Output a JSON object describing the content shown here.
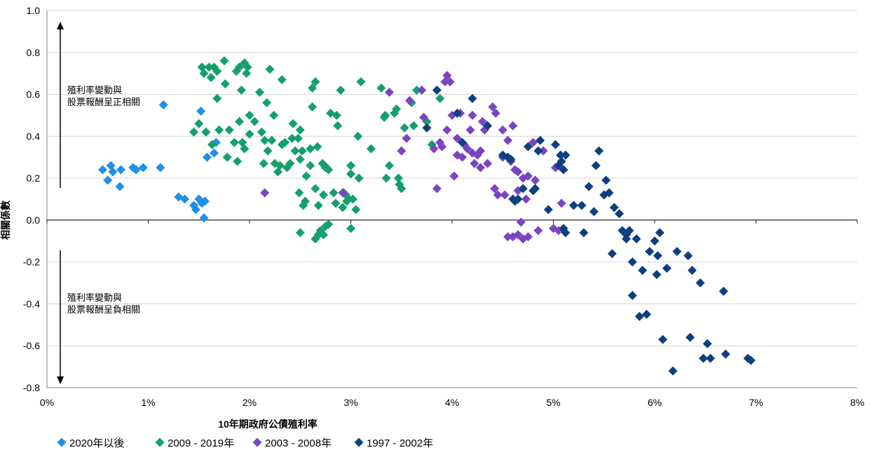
{
  "chart_data": {
    "type": "scatter",
    "xlabel": "10年期政府公債殖利率",
    "ylabel": "相關係數",
    "xlim": [
      0,
      8
    ],
    "ylim": [
      -0.8,
      1.0
    ],
    "x_ticks": [
      "0%",
      "1%",
      "2%",
      "3%",
      "4%",
      "5%",
      "6%",
      "7%",
      "8%"
    ],
    "y_ticks": [
      "1.0",
      "0.8",
      "0.6",
      "0.4",
      "0.2",
      "0.0",
      "-0.2",
      "-0.4",
      "-0.6",
      "-0.8"
    ],
    "grid": "horizontal",
    "legend_position": "bottom-left",
    "annotations": {
      "positive": [
        "殖利率變動與",
        "股票報酬呈正相關"
      ],
      "negative": [
        "殖利率變動與",
        "股票報酬呈負相關"
      ]
    },
    "series": [
      {
        "name": "2020年以後",
        "color": "#1E90E8",
        "points": [
          [
            0.55,
            0.24
          ],
          [
            0.6,
            0.19
          ],
          [
            0.63,
            0.26
          ],
          [
            0.65,
            0.23
          ],
          [
            0.72,
            0.16
          ],
          [
            0.73,
            0.24
          ],
          [
            0.85,
            0.25
          ],
          [
            0.88,
            0.24
          ],
          [
            0.95,
            0.25
          ],
          [
            1.12,
            0.25
          ],
          [
            1.15,
            0.55
          ],
          [
            1.3,
            0.11
          ],
          [
            1.36,
            0.1
          ],
          [
            1.45,
            0.07
          ],
          [
            1.47,
            0.05
          ],
          [
            1.5,
            0.1
          ],
          [
            1.52,
            0.52
          ],
          [
            1.53,
            0.08
          ],
          [
            1.56,
            0.09
          ],
          [
            1.55,
            0.01
          ],
          [
            1.58,
            0.3
          ],
          [
            1.65,
            0.32
          ],
          [
            1.67,
            0.37
          ]
        ]
      },
      {
        "name": "2009 - 2019年",
        "color": "#13A06B",
        "points": [
          [
            1.45,
            0.42
          ],
          [
            1.5,
            0.46
          ],
          [
            1.53,
            0.73
          ],
          [
            1.55,
            0.7
          ],
          [
            1.57,
            0.42
          ],
          [
            1.6,
            0.73
          ],
          [
            1.62,
            0.68
          ],
          [
            1.63,
            0.36
          ],
          [
            1.65,
            0.73
          ],
          [
            1.68,
            0.71
          ],
          [
            1.68,
            0.58
          ],
          [
            1.7,
            0.43
          ],
          [
            1.75,
            0.76
          ],
          [
            1.76,
            0.65
          ],
          [
            1.78,
            0.3
          ],
          [
            1.8,
            0.43
          ],
          [
            1.85,
            0.37
          ],
          [
            1.87,
            0.71
          ],
          [
            1.88,
            0.28
          ],
          [
            1.9,
            0.47
          ],
          [
            1.9,
            0.73
          ],
          [
            1.92,
            0.62
          ],
          [
            1.93,
            0.37
          ],
          [
            1.95,
            0.75
          ],
          [
            1.95,
            0.34
          ],
          [
            1.97,
            0.7
          ],
          [
            1.98,
            0.73
          ],
          [
            2.0,
            0.5
          ],
          [
            2.0,
            0.41
          ],
          [
            2.05,
            0.47
          ],
          [
            2.1,
            0.61
          ],
          [
            2.12,
            0.42
          ],
          [
            2.14,
            0.27
          ],
          [
            2.15,
            0.38
          ],
          [
            2.17,
            0.56
          ],
          [
            2.18,
            0.33
          ],
          [
            2.2,
            0.72
          ],
          [
            2.22,
            0.38
          ],
          [
            2.24,
            0.5
          ],
          [
            2.25,
            0.27
          ],
          [
            2.28,
            0.23
          ],
          [
            2.3,
            0.26
          ],
          [
            2.32,
            0.67
          ],
          [
            2.32,
            0.36
          ],
          [
            2.35,
            0.37
          ],
          [
            2.37,
            0.25
          ],
          [
            2.4,
            0.27
          ],
          [
            2.42,
            0.39
          ],
          [
            2.43,
            0.46
          ],
          [
            2.45,
            0.33
          ],
          [
            2.48,
            0.39
          ],
          [
            2.49,
            0.13
          ],
          [
            2.5,
            0.43
          ],
          [
            2.5,
            0.29
          ],
          [
            2.52,
            0.33
          ],
          [
            2.53,
            0.07
          ],
          [
            2.55,
            0.09
          ],
          [
            2.56,
            0.21
          ],
          [
            2.6,
            0.34
          ],
          [
            2.6,
            0.26
          ],
          [
            2.62,
            0.63
          ],
          [
            2.62,
            0.54
          ],
          [
            2.65,
            0.15
          ],
          [
            2.65,
            0.66
          ],
          [
            2.67,
            0.35
          ],
          [
            2.68,
            0.07
          ],
          [
            2.72,
            0.27
          ],
          [
            2.73,
            0.12
          ],
          [
            2.74,
            0.26
          ],
          [
            2.75,
            0.25
          ],
          [
            2.78,
            0.24
          ],
          [
            2.78,
            -0.02
          ],
          [
            2.8,
            0.51
          ],
          [
            2.83,
            0.13
          ],
          [
            2.85,
            0.08
          ],
          [
            2.86,
            0.5
          ],
          [
            2.87,
            0.45
          ],
          [
            2.9,
            0.62
          ],
          [
            2.92,
            0.06
          ],
          [
            2.93,
            0.13
          ],
          [
            2.95,
            0.12
          ],
          [
            2.96,
            0.09
          ],
          [
            2.98,
            0.1
          ],
          [
            3.0,
            0.26
          ],
          [
            3.0,
            0.22
          ],
          [
            3.02,
            0.1
          ],
          [
            3.05,
            0.05
          ],
          [
            3.07,
            0.4
          ],
          [
            3.08,
            0.2
          ],
          [
            3.1,
            0.66
          ],
          [
            3.2,
            0.34
          ],
          [
            3.3,
            0.63
          ],
          [
            3.33,
            0.49
          ],
          [
            3.34,
            0.5
          ],
          [
            3.35,
            0.2
          ],
          [
            3.38,
            0.26
          ],
          [
            3.43,
            0.51
          ],
          [
            3.45,
            0.53
          ],
          [
            3.47,
            0.2
          ],
          [
            3.48,
            0.17
          ],
          [
            3.5,
            0.15
          ],
          [
            3.53,
            0.44
          ],
          [
            3.6,
            0.56
          ],
          [
            3.62,
            0.45
          ],
          [
            3.65,
            0.62
          ],
          [
            3.75,
            0.47
          ],
          [
            3.8,
            0.36
          ],
          [
            3.88,
            0.58
          ],
          [
            2.5,
            -0.06
          ],
          [
            2.65,
            -0.09
          ],
          [
            2.68,
            -0.07
          ],
          [
            2.7,
            -0.05
          ],
          [
            2.73,
            -0.07
          ],
          [
            2.75,
            -0.03
          ],
          [
            3.0,
            -0.04
          ]
        ]
      },
      {
        "name": "2003 - 2008年",
        "color": "#7B44C0",
        "points": [
          [
            2.15,
            0.13
          ],
          [
            2.92,
            0.13
          ],
          [
            3.38,
            0.61
          ],
          [
            3.5,
            0.33
          ],
          [
            3.55,
            0.39
          ],
          [
            3.58,
            0.57
          ],
          [
            3.7,
            0.62
          ],
          [
            3.72,
            0.49
          ],
          [
            3.82,
            0.34
          ],
          [
            3.85,
            0.15
          ],
          [
            3.88,
            0.37
          ],
          [
            3.9,
            0.35
          ],
          [
            3.93,
            0.66
          ],
          [
            3.95,
            0.43
          ],
          [
            3.95,
            0.69
          ],
          [
            3.98,
            0.66
          ],
          [
            4.0,
            0.5
          ],
          [
            4.02,
            0.21
          ],
          [
            4.05,
            0.39
          ],
          [
            4.05,
            0.31
          ],
          [
            4.08,
            0.51
          ],
          [
            4.1,
            0.3
          ],
          [
            4.12,
            0.36
          ],
          [
            4.15,
            0.34
          ],
          [
            4.18,
            0.43
          ],
          [
            4.2,
            0.5
          ],
          [
            4.2,
            0.32
          ],
          [
            4.22,
            0.27
          ],
          [
            4.25,
            0.31
          ],
          [
            4.28,
            0.33
          ],
          [
            4.28,
            0.25
          ],
          [
            4.3,
            0.47
          ],
          [
            4.32,
            0.43
          ],
          [
            4.35,
            0.27
          ],
          [
            4.4,
            0.54
          ],
          [
            4.42,
            0.15
          ],
          [
            4.43,
            0.51
          ],
          [
            4.45,
            0.12
          ],
          [
            4.5,
            0.43
          ],
          [
            4.5,
            0.3
          ],
          [
            4.52,
            0.12
          ],
          [
            4.55,
            0.38
          ],
          [
            4.55,
            0.3
          ],
          [
            4.58,
            0.28
          ],
          [
            4.6,
            0.45
          ],
          [
            4.62,
            0.24
          ],
          [
            4.65,
            0.14
          ],
          [
            4.65,
            0.23
          ],
          [
            4.7,
            0.2
          ],
          [
            4.73,
            0.1
          ],
          [
            4.75,
            0.21
          ],
          [
            4.8,
            0.37
          ],
          [
            4.82,
            0.19
          ],
          [
            4.9,
            0.33
          ],
          [
            5.02,
            0.25
          ],
          [
            5.08,
            0.08
          ],
          [
            4.55,
            -0.08
          ],
          [
            4.6,
            -0.08
          ],
          [
            4.65,
            -0.07
          ],
          [
            4.68,
            -0.01
          ],
          [
            4.7,
            -0.09
          ],
          [
            4.75,
            -0.08
          ],
          [
            4.85,
            -0.05
          ],
          [
            5.0,
            -0.04
          ],
          [
            5.05,
            -0.05
          ]
        ]
      },
      {
        "name": "1997 - 2002年",
        "color": "#0E3F7E",
        "points": [
          [
            3.75,
            0.44
          ],
          [
            3.85,
            0.62
          ],
          [
            4.05,
            0.51
          ],
          [
            4.1,
            0.37
          ],
          [
            4.2,
            0.58
          ],
          [
            4.35,
            0.45
          ],
          [
            4.5,
            0.31
          ],
          [
            4.55,
            0.3
          ],
          [
            4.58,
            0.29
          ],
          [
            4.6,
            0.1
          ],
          [
            4.62,
            0.09
          ],
          [
            4.65,
            0.1
          ],
          [
            4.7,
            0.15
          ],
          [
            4.75,
            0.35
          ],
          [
            4.8,
            0.14
          ],
          [
            4.82,
            0.15
          ],
          [
            4.85,
            0.33
          ],
          [
            4.87,
            0.38
          ],
          [
            4.95,
            0.05
          ],
          [
            5.02,
            0.36
          ],
          [
            5.05,
            0.26
          ],
          [
            5.07,
            0.31
          ],
          [
            5.08,
            0.28
          ],
          [
            5.1,
            0.24
          ],
          [
            5.12,
            0.31
          ],
          [
            5.1,
            -0.04
          ],
          [
            5.12,
            -0.06
          ],
          [
            5.2,
            0.07
          ],
          [
            5.28,
            0.07
          ],
          [
            5.3,
            -0.06
          ],
          [
            5.35,
            0.16
          ],
          [
            5.4,
            0.04
          ],
          [
            5.42,
            0.26
          ],
          [
            5.45,
            0.33
          ],
          [
            5.5,
            0.12
          ],
          [
            5.52,
            0.19
          ],
          [
            5.55,
            0.13
          ],
          [
            5.58,
            -0.16
          ],
          [
            5.6,
            0.06
          ],
          [
            5.65,
            0.03
          ],
          [
            5.68,
            -0.05
          ],
          [
            5.72,
            -0.07
          ],
          [
            5.72,
            -0.09
          ],
          [
            5.75,
            -0.05
          ],
          [
            5.78,
            -0.2
          ],
          [
            5.78,
            -0.36
          ],
          [
            5.82,
            -0.09
          ],
          [
            5.85,
            -0.46
          ],
          [
            5.88,
            -0.24
          ],
          [
            5.92,
            -0.45
          ],
          [
            5.95,
            -0.15
          ],
          [
            6.0,
            -0.1
          ],
          [
            6.02,
            -0.26
          ],
          [
            6.03,
            -0.17
          ],
          [
            6.05,
            -0.06
          ],
          [
            6.08,
            -0.57
          ],
          [
            6.12,
            -0.23
          ],
          [
            6.18,
            -0.72
          ],
          [
            6.22,
            -0.15
          ],
          [
            6.33,
            -0.17
          ],
          [
            6.35,
            -0.56
          ],
          [
            6.37,
            -0.24
          ],
          [
            6.45,
            -0.3
          ],
          [
            6.48,
            -0.66
          ],
          [
            6.52,
            -0.59
          ],
          [
            6.55,
            -0.66
          ],
          [
            6.68,
            -0.34
          ],
          [
            6.7,
            -0.64
          ],
          [
            6.92,
            -0.66
          ],
          [
            6.95,
            -0.67
          ]
        ]
      }
    ]
  }
}
